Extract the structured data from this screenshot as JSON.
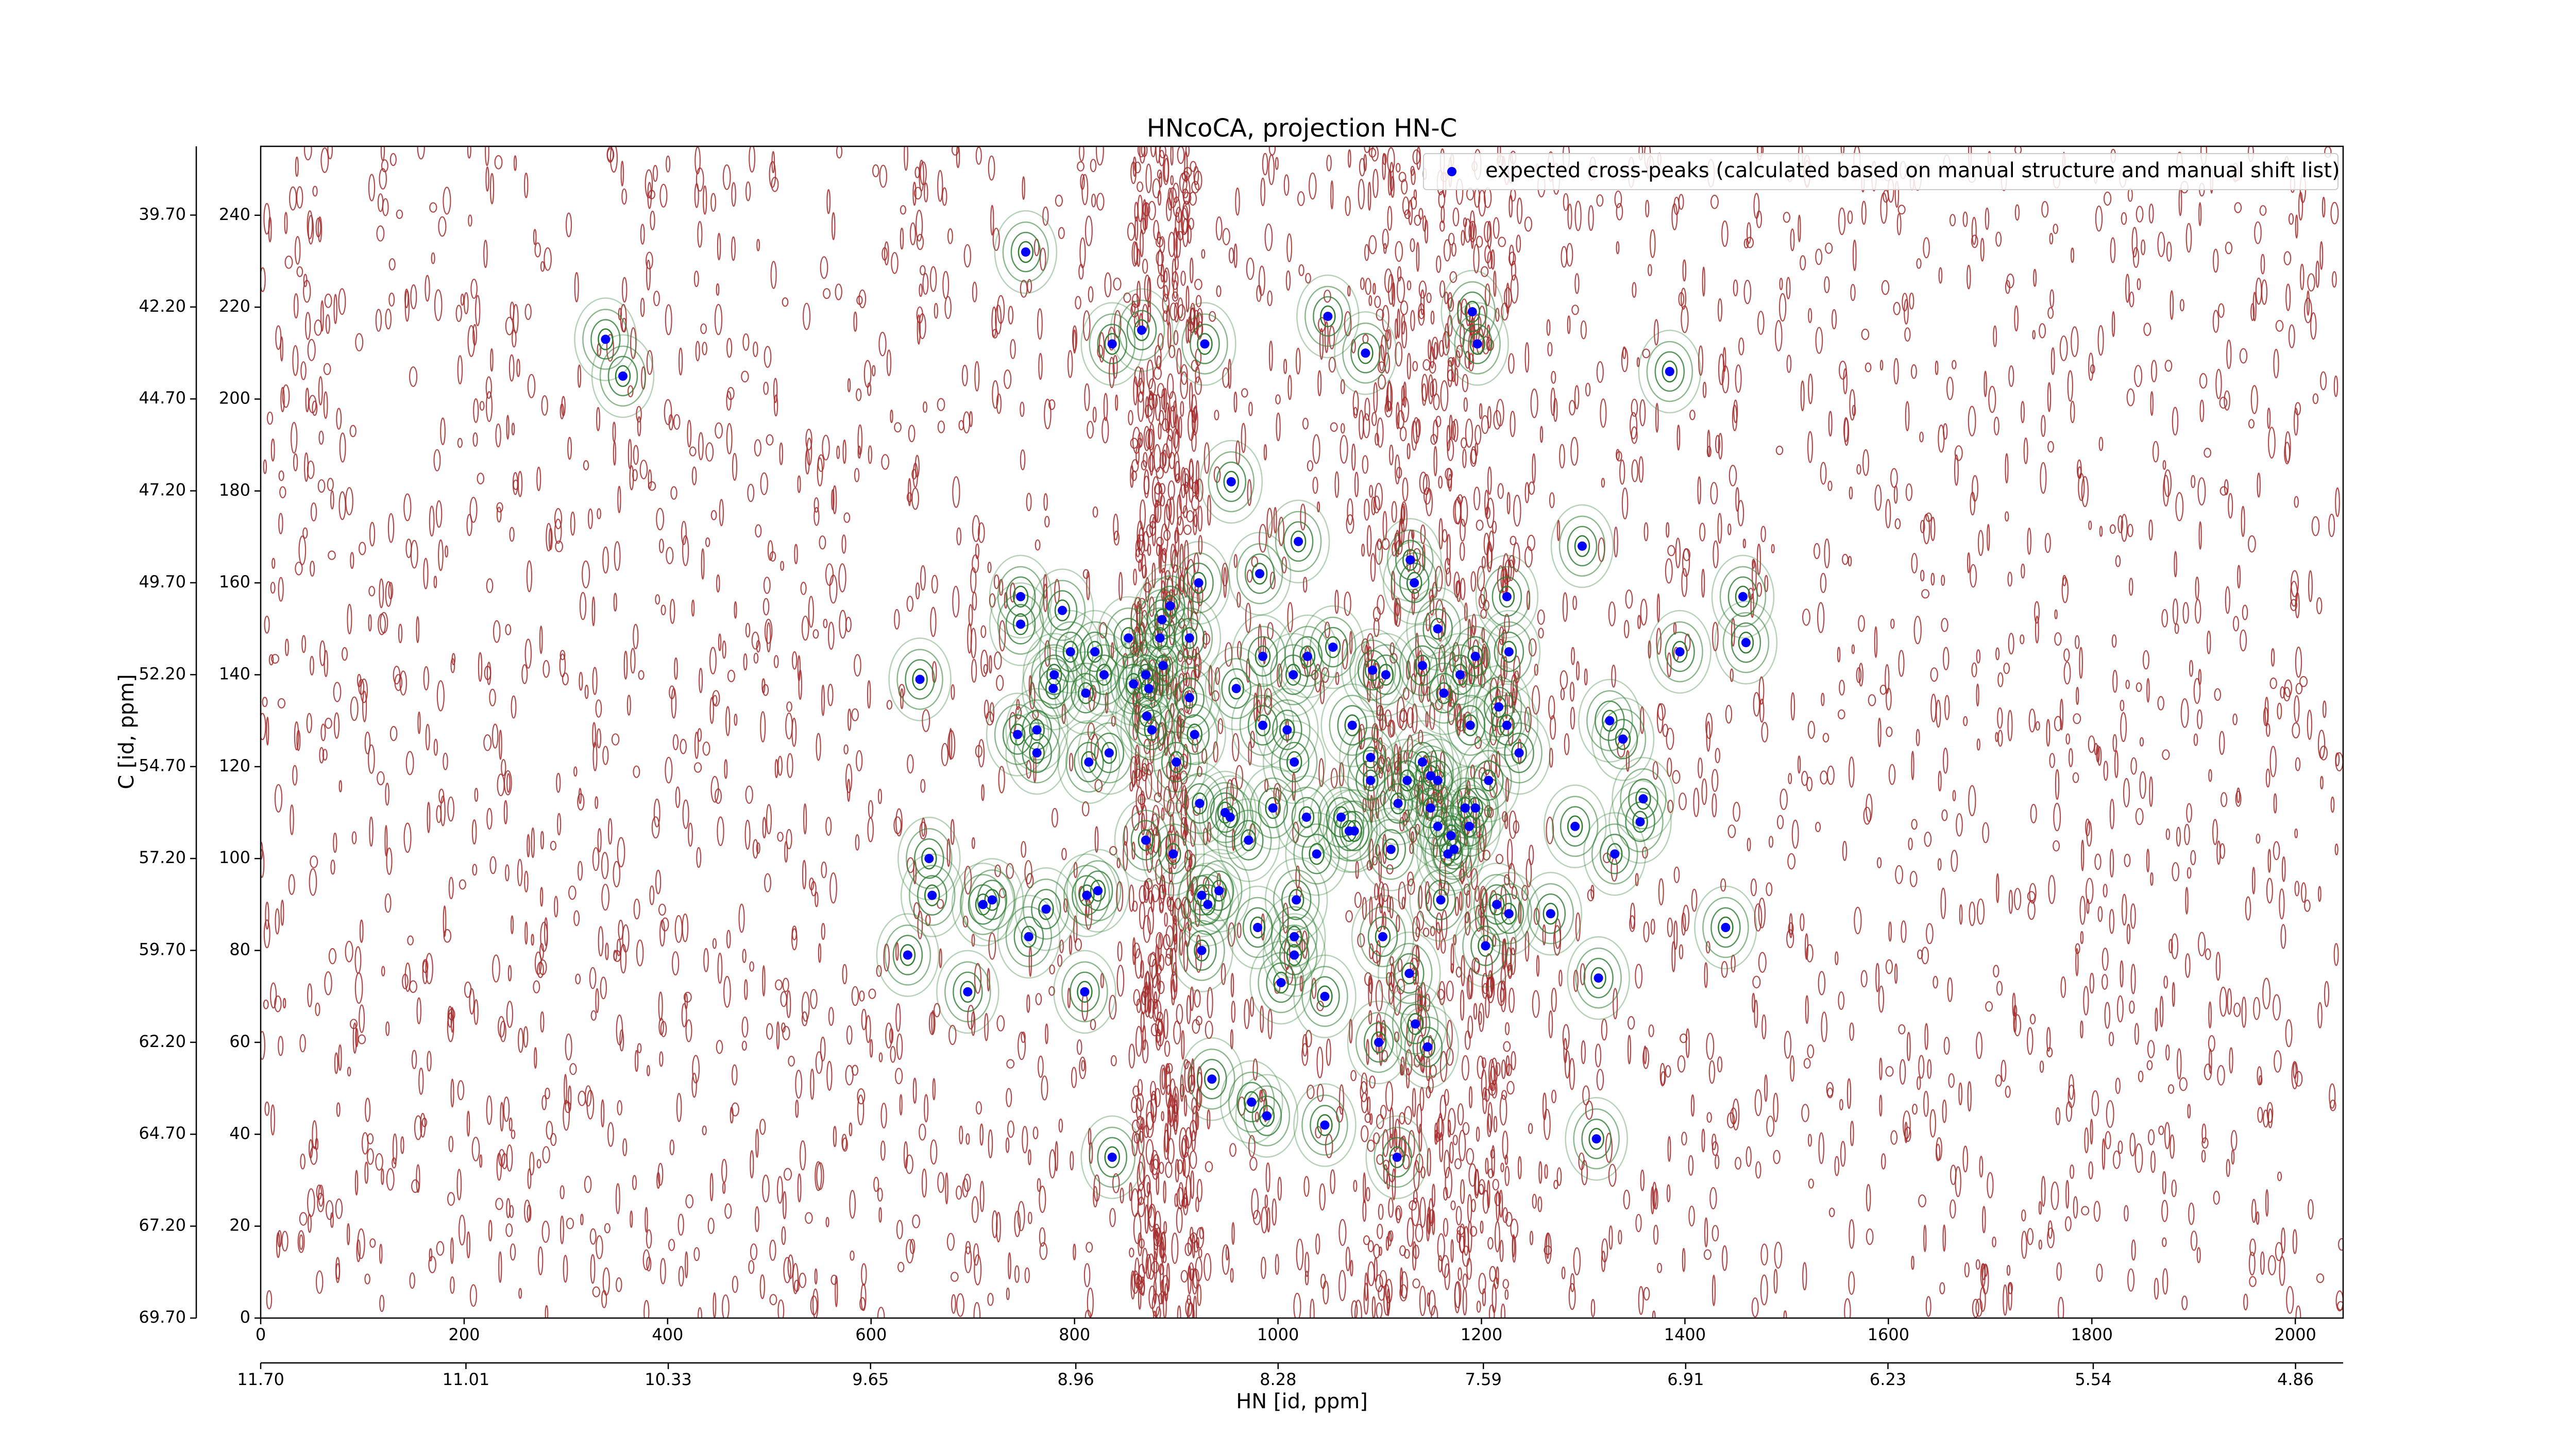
{
  "chart_data": {
    "type": "scatter",
    "title": "HNcoCA, projection HN-C",
    "xlabel": "HN [id, ppm]",
    "ylabel": "C [id, ppm]",
    "legend": "upper right",
    "xlim": [
      0,
      2047
    ],
    "ylim": [
      0,
      255
    ],
    "xticks": [
      0,
      200,
      400,
      600,
      800,
      1000,
      1200,
      1400,
      1600,
      1800,
      2000
    ],
    "yticks": [
      0,
      20,
      40,
      60,
      80,
      100,
      120,
      140,
      160,
      180,
      200,
      220,
      240
    ],
    "x2lim": [
      11.7,
      4.7
    ],
    "x2ticks": [
      {
        "value": 11.7,
        "label": "11.70"
      },
      {
        "value": 11.01,
        "label": "11.01"
      },
      {
        "value": 10.33,
        "label": "10.33"
      },
      {
        "value": 9.65,
        "label": "9.65"
      },
      {
        "value": 8.96,
        "label": "8.96"
      },
      {
        "value": 8.28,
        "label": "8.28"
      },
      {
        "value": 7.59,
        "label": "7.59"
      },
      {
        "value": 6.91,
        "label": "6.91"
      },
      {
        "value": 6.23,
        "label": "6.23"
      },
      {
        "value": 5.54,
        "label": "5.54"
      },
      {
        "value": 4.86,
        "label": "4.86"
      }
    ],
    "y2lim": [
      69.7,
      37.83
    ],
    "y2ticks": [
      {
        "value": 69.7,
        "label": "69.70"
      },
      {
        "value": 67.2,
        "label": "67.20"
      },
      {
        "value": 64.7,
        "label": "64.70"
      },
      {
        "value": 62.2,
        "label": "62.20"
      },
      {
        "value": 59.7,
        "label": "59.70"
      },
      {
        "value": 57.2,
        "label": "57.20"
      },
      {
        "value": 54.7,
        "label": "54.70"
      },
      {
        "value": 52.2,
        "label": "52.20"
      },
      {
        "value": 49.7,
        "label": "49.70"
      },
      {
        "value": 47.2,
        "label": "47.20"
      },
      {
        "value": 44.7,
        "label": "44.70"
      },
      {
        "value": 42.2,
        "label": "42.20"
      },
      {
        "value": 39.7,
        "label": "39.70"
      }
    ],
    "series": [
      {
        "name": "expected cross-peaks (calculated based on manual structure and manual shift list)",
        "color": "#0000ff",
        "x": [
          339,
          356,
          752,
          837,
          866,
          928,
          1049,
          1086,
          1191,
          1196,
          1385,
          954,
          1020,
          1299,
          1130,
          1134,
          982,
          922,
          1225,
          1457,
          747,
          747,
          788,
          894,
          886,
          884,
          913,
          1157,
          796,
          820,
          853,
          1395,
          1460,
          1054,
          985,
          1029,
          1015,
          1093,
          1106,
          1142,
          1194,
          1227,
          1179,
          780,
          779,
          811,
          829,
          858,
          870,
          873,
          648,
          887,
          913,
          959,
          1163,
          1217,
          871,
          876,
          918,
          744,
          763,
          763,
          985,
          1009,
          1073,
          1225,
          1326,
          1339,
          1189,
          834,
          814,
          900,
          1016,
          1091,
          1142,
          1150,
          1157,
          1237,
          1091,
          1207,
          1127,
          1118,
          923,
          948,
          953,
          995,
          1028,
          1062,
          1075,
          1070,
          1150,
          1157,
          1184,
          1194,
          1188,
          1170,
          1173,
          1167,
          1359,
          1356,
          1292,
          1331,
          870,
          971,
          1038,
          1111,
          897,
          657,
          660,
          710,
          719,
          772,
          755,
          812,
          823,
          925,
          931,
          942,
          980,
          1018,
          1160,
          1215,
          1227,
          1268,
          1440,
          636,
          695,
          810,
          925,
          1016,
          1016,
          1103,
          1204,
          1129,
          1003,
          1046,
          1315,
          1135,
          1099,
          1147,
          935,
          974,
          989,
          1046,
          1313,
          1117,
          837
        ],
        "values": [
          213,
          205,
          232,
          212,
          215,
          212,
          218,
          210,
          219,
          212,
          206,
          182,
          169,
          168,
          165,
          160,
          162,
          160,
          157,
          157,
          157,
          151,
          154,
          155,
          152,
          148,
          148,
          150,
          145,
          145,
          148,
          145,
          147,
          146,
          144,
          144,
          140,
          141,
          140,
          142,
          144,
          145,
          140,
          140,
          137,
          136,
          140,
          138,
          140,
          137,
          139,
          142,
          135,
          137,
          136,
          133,
          131,
          128,
          127,
          127,
          128,
          123,
          129,
          128,
          129,
          129,
          130,
          126,
          129,
          123,
          121,
          121,
          121,
          122,
          121,
          118,
          117,
          123,
          117,
          117,
          117,
          112,
          112,
          110,
          109,
          111,
          109,
          109,
          106,
          106,
          111,
          107,
          111,
          111,
          107,
          105,
          102,
          101,
          113,
          108,
          107,
          101,
          104,
          104,
          101,
          102,
          101,
          100,
          92,
          90,
          91,
          89,
          83,
          92,
          93,
          92,
          90,
          93,
          85,
          91,
          91,
          90,
          88,
          88,
          85,
          79,
          71,
          71,
          80,
          83,
          79,
          83,
          81,
          75,
          73,
          70,
          74,
          64,
          60,
          59,
          52,
          47,
          44,
          42,
          39,
          35,
          35
        ]
      }
    ]
  }
}
